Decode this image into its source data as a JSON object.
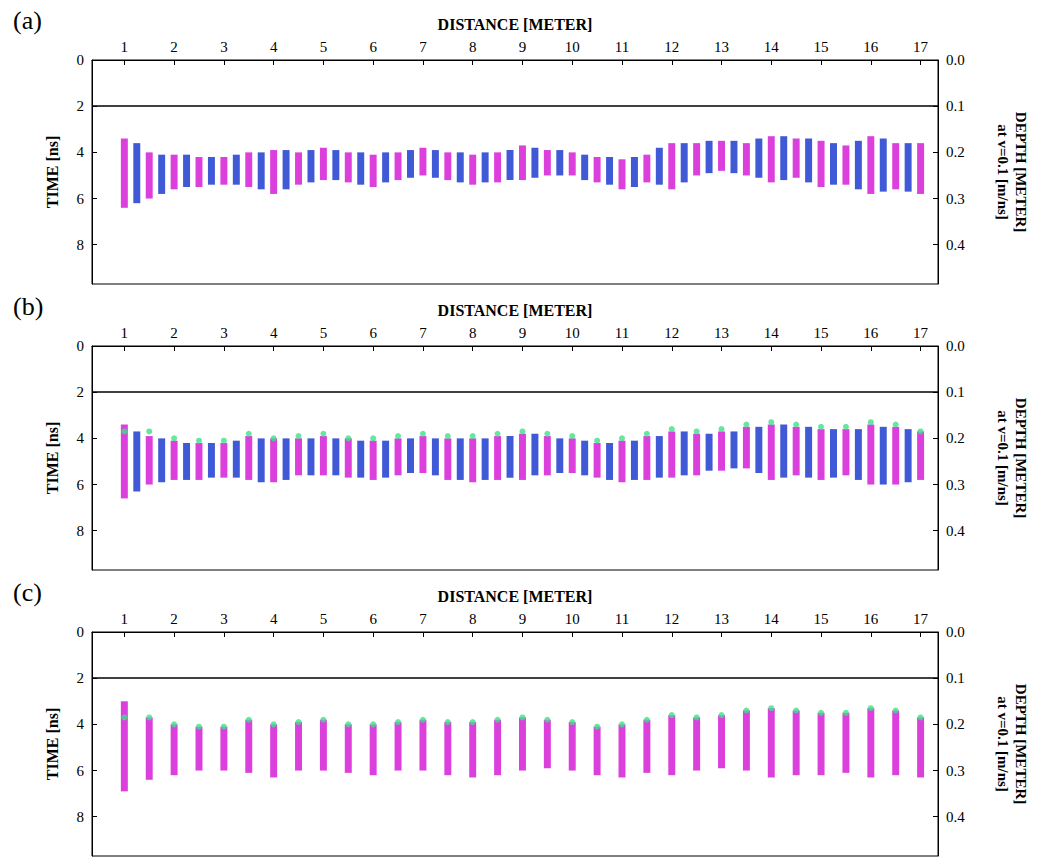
{
  "chart_data": [
    {
      "type": "radargram",
      "title": "(a)",
      "x_label": "DISTANCE [METER]",
      "y_label": "TIME [ns]",
      "y2_label": "DEPTH [METER] at v=0.1 [m/ns]",
      "xlim": [
        0.35,
        17.35
      ],
      "xticks": [
        1,
        2,
        3,
        4,
        5,
        6,
        7,
        8,
        9,
        10,
        11,
        12,
        13,
        14,
        15,
        16,
        17
      ],
      "ylim": [
        0,
        9.7
      ],
      "yticks": [
        0,
        2,
        4,
        6,
        8
      ],
      "y2lim": [
        0,
        0.485
      ],
      "y2ticks": [
        {
          "value": 0,
          "label": "0.0"
        },
        0.1,
        0.2,
        0.3,
        0.4
      ],
      "hline": 2,
      "series": [
        {
          "type": "band",
          "color": "#d61ed6",
          "x": [
            1,
            1.5,
            2,
            2.5,
            3,
            3.5,
            4,
            4.5,
            5,
            5.5,
            6,
            6.5,
            7,
            7.5,
            8,
            8.5,
            9,
            9.5,
            10,
            10.5,
            11,
            11.5,
            12,
            12.5,
            13,
            13.5,
            14,
            14.5,
            15,
            15.5,
            16,
            16.5,
            17
          ],
          "low": [
            3.4,
            4.0,
            4.1,
            4.2,
            4.2,
            4.0,
            3.9,
            4.0,
            3.8,
            4.0,
            4.1,
            4.0,
            3.8,
            4.0,
            4.1,
            4.0,
            3.7,
            3.9,
            4.0,
            4.2,
            4.3,
            4.1,
            3.6,
            3.6,
            3.5,
            3.6,
            3.3,
            3.4,
            3.5,
            3.7,
            3.3,
            3.6,
            3.6
          ],
          "high": [
            6.4,
            6.0,
            5.6,
            5.5,
            5.4,
            5.5,
            5.8,
            5.4,
            5.2,
            5.3,
            5.5,
            5.2,
            5.0,
            5.2,
            5.4,
            5.3,
            5.2,
            5.0,
            5.0,
            5.3,
            5.6,
            5.3,
            5.6,
            5.0,
            4.8,
            5.0,
            5.3,
            5.1,
            5.5,
            5.4,
            5.8,
            5.6,
            5.8
          ]
        },
        {
          "type": "band",
          "color": "#1e3ccf",
          "x": [
            1.25,
            1.75,
            2.25,
            2.75,
            3.25,
            3.75,
            4.25,
            4.75,
            5.25,
            5.75,
            6.25,
            6.75,
            7.25,
            7.75,
            8.25,
            8.75,
            9.25,
            9.75,
            10.25,
            10.75,
            11.25,
            11.75,
            12.25,
            12.75,
            13.25,
            13.75,
            14.25,
            14.75,
            15.25,
            15.75,
            16.25,
            16.75
          ],
          "low": [
            3.6,
            4.1,
            4.1,
            4.2,
            4.1,
            4.0,
            3.9,
            3.9,
            3.9,
            4.0,
            4.0,
            3.9,
            3.9,
            4.0,
            4.0,
            3.9,
            3.8,
            3.9,
            4.1,
            4.2,
            4.2,
            3.8,
            3.6,
            3.5,
            3.5,
            3.4,
            3.3,
            3.4,
            3.6,
            3.5,
            3.4,
            3.6
          ],
          "high": [
            6.2,
            5.8,
            5.5,
            5.4,
            5.4,
            5.6,
            5.6,
            5.3,
            5.2,
            5.4,
            5.3,
            5.1,
            5.1,
            5.3,
            5.3,
            5.2,
            5.1,
            5.0,
            5.2,
            5.4,
            5.5,
            5.4,
            5.3,
            4.9,
            4.9,
            5.1,
            5.2,
            5.3,
            5.4,
            5.6,
            5.7,
            5.7
          ]
        }
      ]
    },
    {
      "type": "radargram",
      "title": "(b)",
      "x_label": "DISTANCE [METER]",
      "y_label": "TIME [ns]",
      "y2_label": "DEPTH [METER] at v=0.1 [m/ns]",
      "xlim": [
        0.35,
        17.35
      ],
      "xticks": [
        1,
        2,
        3,
        4,
        5,
        6,
        7,
        8,
        9,
        10,
        11,
        12,
        13,
        14,
        15,
        16,
        17
      ],
      "ylim": [
        0,
        9.7
      ],
      "yticks": [
        0,
        2,
        4,
        6,
        8
      ],
      "y2lim": [
        0,
        0.485
      ],
      "y2ticks": [
        {
          "value": 0,
          "label": "0.0"
        },
        0.1,
        0.2,
        0.3,
        0.4
      ],
      "hline": 2,
      "series": [
        {
          "type": "band",
          "color": "#d61ed6",
          "x": [
            1,
            1.5,
            2,
            2.5,
            3,
            3.5,
            4,
            4.5,
            5,
            5.5,
            6,
            6.5,
            7,
            7.5,
            8,
            8.5,
            9,
            9.5,
            10,
            10.5,
            11,
            11.5,
            12,
            12.5,
            13,
            13.5,
            14,
            14.5,
            15,
            15.5,
            16,
            16.5,
            17
          ],
          "low": [
            3.4,
            3.9,
            4.1,
            4.2,
            4.2,
            3.9,
            4.0,
            4.0,
            3.9,
            4.0,
            4.1,
            4.0,
            3.9,
            4.0,
            4.0,
            3.9,
            3.8,
            3.9,
            4.0,
            4.2,
            4.1,
            3.9,
            3.7,
            3.8,
            3.7,
            3.5,
            3.4,
            3.5,
            3.6,
            3.6,
            3.4,
            3.5,
            3.7
          ],
          "high": [
            6.6,
            6.0,
            5.8,
            5.8,
            5.7,
            5.8,
            5.9,
            5.6,
            5.6,
            5.7,
            5.8,
            5.6,
            5.5,
            5.8,
            5.9,
            5.8,
            5.8,
            5.6,
            5.5,
            5.7,
            5.9,
            5.8,
            5.7,
            5.6,
            5.4,
            5.3,
            5.8,
            5.6,
            5.8,
            5.6,
            6.0,
            6.0,
            5.8
          ]
        },
        {
          "type": "band",
          "color": "#1e3ccf",
          "x": [
            1.25,
            1.75,
            2.25,
            2.75,
            3.25,
            3.75,
            4.25,
            4.75,
            5.25,
            5.75,
            6.25,
            6.75,
            7.25,
            7.75,
            8.25,
            8.75,
            9.25,
            9.75,
            10.25,
            10.75,
            11.25,
            11.75,
            12.25,
            12.75,
            13.25,
            13.75,
            14.25,
            14.75,
            15.25,
            15.75,
            16.25,
            16.75
          ],
          "low": [
            3.7,
            4.0,
            4.2,
            4.2,
            4.1,
            4.0,
            4.0,
            4.0,
            4.0,
            4.1,
            4.1,
            4.0,
            4.0,
            4.0,
            4.0,
            3.9,
            3.8,
            4.0,
            4.1,
            4.2,
            4.1,
            3.9,
            3.7,
            3.8,
            3.7,
            3.5,
            3.4,
            3.5,
            3.6,
            3.6,
            3.5,
            3.6
          ],
          "high": [
            6.3,
            5.9,
            5.8,
            5.7,
            5.7,
            5.9,
            5.8,
            5.6,
            5.6,
            5.7,
            5.7,
            5.5,
            5.6,
            5.8,
            5.8,
            5.7,
            5.6,
            5.5,
            5.6,
            5.8,
            5.8,
            5.7,
            5.6,
            5.4,
            5.3,
            5.5,
            5.7,
            5.7,
            5.7,
            5.8,
            6.0,
            5.9
          ]
        },
        {
          "type": "scatter",
          "color": "#3ee08a",
          "marker": "circle",
          "x": [
            1,
            1.5,
            2,
            2.5,
            3,
            3.5,
            4,
            4.5,
            5,
            5.5,
            6,
            6.5,
            7,
            7.5,
            8,
            8.5,
            9,
            9.5,
            10,
            10.5,
            11,
            11.5,
            12,
            12.5,
            13,
            13.5,
            14,
            14.5,
            15,
            15.5,
            16,
            16.5,
            17
          ],
          "values": [
            3.7,
            3.7,
            4.0,
            4.1,
            4.1,
            3.8,
            4.0,
            3.9,
            3.8,
            4.0,
            4.0,
            3.9,
            3.8,
            3.9,
            3.9,
            3.8,
            3.7,
            3.8,
            3.9,
            4.1,
            4.0,
            3.8,
            3.6,
            3.7,
            3.6,
            3.4,
            3.3,
            3.4,
            3.5,
            3.5,
            3.3,
            3.4,
            3.7
          ]
        }
      ]
    },
    {
      "type": "radargram",
      "title": "(c)",
      "x_label": "DISTANCE [METER]",
      "y_label": "TIME [ns]",
      "y2_label": "DEPTH [METER] at v=0.1 [m/ns]",
      "xlim": [
        0.35,
        17.35
      ],
      "xticks": [
        1,
        2,
        3,
        4,
        5,
        6,
        7,
        8,
        9,
        10,
        11,
        12,
        13,
        14,
        15,
        16,
        17
      ],
      "ylim": [
        0,
        9.7
      ],
      "yticks": [
        0,
        2,
        4,
        6,
        8
      ],
      "y2lim": [
        0,
        0.485
      ],
      "y2ticks": [
        {
          "value": 0,
          "label": "0.0"
        },
        0.1,
        0.2,
        0.3,
        0.4
      ],
      "hline": 2,
      "series": [
        {
          "type": "band",
          "color": "#d61ed6",
          "x": [
            1,
            1.5,
            2,
            2.5,
            3,
            3.5,
            4,
            4.5,
            5,
            5.5,
            6,
            6.5,
            7,
            7.5,
            8,
            8.5,
            9,
            9.5,
            10,
            10.5,
            11,
            11.5,
            12,
            12.5,
            13,
            13.5,
            14,
            14.5,
            15,
            15.5,
            16,
            16.5,
            17
          ],
          "low": [
            3.0,
            3.7,
            4.0,
            4.1,
            4.1,
            3.8,
            4.0,
            3.9,
            3.8,
            4.0,
            4.0,
            3.9,
            3.8,
            3.9,
            3.9,
            3.8,
            3.7,
            3.8,
            3.9,
            4.1,
            4.0,
            3.8,
            3.6,
            3.7,
            3.6,
            3.4,
            3.3,
            3.4,
            3.5,
            3.5,
            3.3,
            3.4,
            3.7
          ],
          "high": [
            6.9,
            6.4,
            6.2,
            6.0,
            6.0,
            6.1,
            6.3,
            6.0,
            6.0,
            6.1,
            6.2,
            6.0,
            6.0,
            6.2,
            6.3,
            6.2,
            6.0,
            5.9,
            6.0,
            6.2,
            6.3,
            6.1,
            6.2,
            6.0,
            5.9,
            6.0,
            6.3,
            6.2,
            6.2,
            6.1,
            6.3,
            6.2,
            6.3
          ]
        },
        {
          "type": "scatter",
          "color": "#3ee08a",
          "marker": "circle",
          "x": [
            1,
            1.5,
            2,
            2.5,
            3,
            3.5,
            4,
            4.5,
            5,
            5.5,
            6,
            6.5,
            7,
            7.5,
            8,
            8.5,
            9,
            9.5,
            10,
            10.5,
            11,
            11.5,
            12,
            12.5,
            13,
            13.5,
            14,
            14.5,
            15,
            15.5,
            16,
            16.5,
            17
          ],
          "values": [
            3.7,
            3.7,
            4.0,
            4.1,
            4.1,
            3.8,
            4.0,
            3.9,
            3.8,
            4.0,
            4.0,
            3.9,
            3.8,
            3.9,
            3.9,
            3.8,
            3.7,
            3.8,
            3.9,
            4.1,
            4.0,
            3.8,
            3.6,
            3.7,
            3.6,
            3.4,
            3.3,
            3.4,
            3.5,
            3.5,
            3.3,
            3.4,
            3.7
          ]
        }
      ]
    }
  ]
}
